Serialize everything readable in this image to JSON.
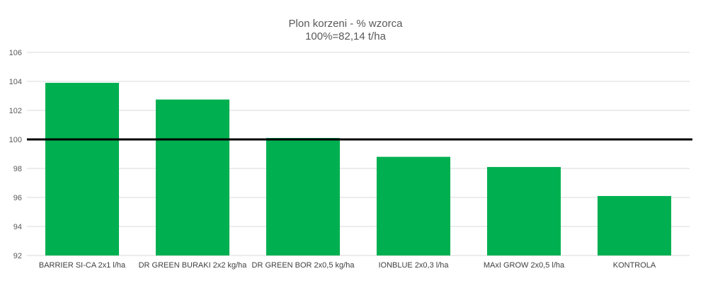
{
  "chart_data": {
    "type": "bar",
    "title": "Plon korzeni - % wzorca",
    "subtitle": "100%=82,14 t/ha",
    "xlabel": "",
    "ylabel": "",
    "categories": [
      "BARRIER SI-CA 2x1  l/ha",
      "DR GREEN BURAKI 2x2  kg/ha",
      "DR GREEN BOR 2x0,5  kg/ha",
      "IONBLUE 2x0,3  l/ha",
      "MAxI GROW 2x0,5  l/ha",
      "KONTROLA"
    ],
    "values": [
      103.9,
      102.75,
      100.1,
      98.8,
      98.1,
      96.1
    ],
    "ylim": [
      92,
      106
    ],
    "yticks": [
      "92",
      "94",
      "96",
      "98",
      "100",
      "102",
      "104",
      "106"
    ],
    "reference_line": 100,
    "grid": true,
    "legend": "none",
    "bar_color": "#00b050",
    "reference_color": "#000000",
    "grid_color": "#d9d9d9"
  }
}
